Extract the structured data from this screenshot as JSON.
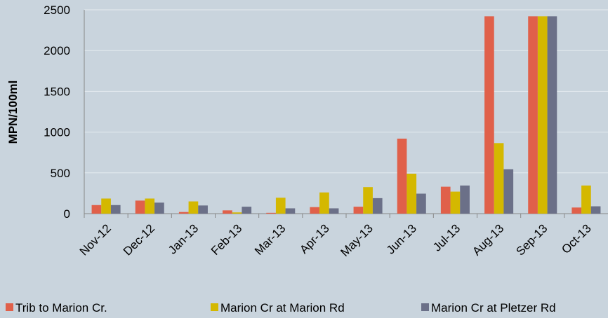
{
  "chart_data": {
    "type": "bar",
    "ylabel": "MPN/100ml",
    "categories": [
      "Nov-12",
      "Dec-12",
      "Jan-13",
      "Feb-13",
      "Mar-13",
      "Apr-13",
      "May-13",
      "Jun-13",
      "Jul-13",
      "Aug-13",
      "Sep-13",
      "Oct-13"
    ],
    "series": [
      {
        "name": "Trib to Marion Cr.",
        "color": "#e0604a",
        "values": [
          105,
          160,
          20,
          40,
          10,
          80,
          85,
          920,
          330,
          2420,
          2420,
          75
        ]
      },
      {
        "name": "Marion Cr at Marion Rd",
        "color": "#d4b800",
        "values": [
          185,
          185,
          150,
          15,
          195,
          260,
          325,
          490,
          270,
          865,
          2420,
          345
        ]
      },
      {
        "name": "Marion Cr at Pletzer Rd",
        "color": "#6b7088",
        "values": [
          105,
          135,
          100,
          85,
          65,
          65,
          190,
          245,
          345,
          545,
          2420,
          90
        ]
      }
    ],
    "ylim": [
      0,
      2500
    ],
    "yticks": [
      0,
      500,
      1000,
      1500,
      2000,
      2500
    ],
    "grid": true
  }
}
